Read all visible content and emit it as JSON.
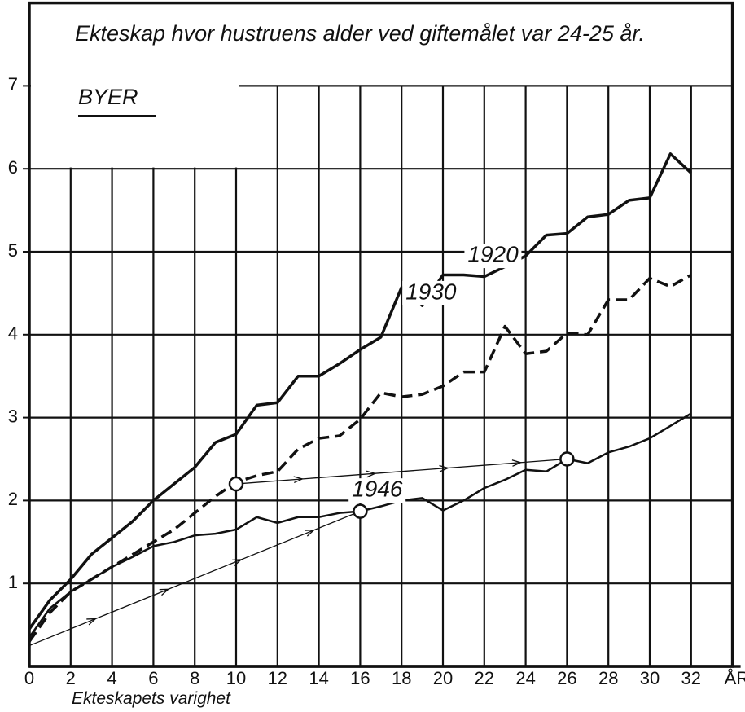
{
  "chart_data": {
    "type": "line",
    "title": "Ekteskap hvor hustruens alder ved giftemålet var 24-25 år.",
    "subtitle": "BYER",
    "x_label": "Ekteskapets varighet",
    "x_unit": "ÅR",
    "x": [
      0,
      1,
      2,
      3,
      4,
      5,
      6,
      7,
      8,
      9,
      10,
      11,
      12,
      13,
      14,
      15,
      16,
      17,
      18,
      19,
      20,
      21,
      22,
      23,
      24,
      25,
      26,
      27,
      28,
      29,
      30,
      31,
      32
    ],
    "series": [
      {
        "name": "1920",
        "color": "#111111",
        "style": "solid",
        "width": 3.5,
        "values": [
          0.45,
          0.8,
          1.05,
          1.35,
          1.55,
          1.75,
          2.0,
          2.2,
          2.4,
          2.7,
          2.8,
          3.15,
          3.18,
          3.5,
          3.5,
          3.65,
          3.82,
          3.97,
          4.57,
          4.35,
          4.72,
          4.72,
          4.7,
          4.82,
          4.95,
          5.2,
          5.22,
          5.42,
          5.45,
          5.62,
          5.65,
          6.18,
          5.95
        ]
      },
      {
        "name": "1930",
        "color": "#111111",
        "style": "dashed",
        "width": 3.5,
        "values": [
          0.3,
          0.65,
          0.9,
          1.05,
          1.2,
          1.35,
          1.5,
          1.65,
          1.85,
          2.05,
          2.22,
          2.3,
          2.35,
          2.62,
          2.75,
          2.78,
          2.98,
          3.3,
          3.25,
          3.28,
          3.38,
          3.55,
          3.55,
          4.1,
          3.77,
          3.8,
          4.02,
          4.0,
          4.42,
          4.42,
          4.68,
          4.58,
          4.72
        ]
      },
      {
        "name": "1946",
        "color": "#111111",
        "style": "solid",
        "width": 2.5,
        "values": [
          0.35,
          0.7,
          0.9,
          1.05,
          1.2,
          1.32,
          1.45,
          1.5,
          1.58,
          1.6,
          1.65,
          1.8,
          1.73,
          1.8,
          1.8,
          1.85,
          1.87,
          1.93,
          2.0,
          2.03,
          1.88,
          2.0,
          2.15,
          2.25,
          2.37,
          2.35,
          2.5,
          2.45,
          2.58,
          2.65,
          2.75,
          2.9,
          3.05
        ]
      }
    ],
    "cohort_arrows": [
      {
        "x": [
          0,
          16
        ],
        "y": [
          0.25,
          1.87
        ]
      },
      {
        "x": [
          10,
          26
        ],
        "y": [
          2.2,
          2.5
        ]
      }
    ],
    "markers": [
      {
        "x": 10,
        "y": 2.2
      },
      {
        "x": 16,
        "y": 1.87
      },
      {
        "x": 26,
        "y": 2.5
      }
    ],
    "xlim": [
      0,
      34
    ],
    "ylim": [
      0,
      8
    ],
    "xticks": [
      0,
      2,
      4,
      6,
      8,
      10,
      12,
      14,
      16,
      18,
      20,
      22,
      24,
      26,
      28,
      30,
      32
    ],
    "yticks": [
      1,
      2,
      3,
      4,
      5,
      6,
      7
    ],
    "grid": true
  }
}
